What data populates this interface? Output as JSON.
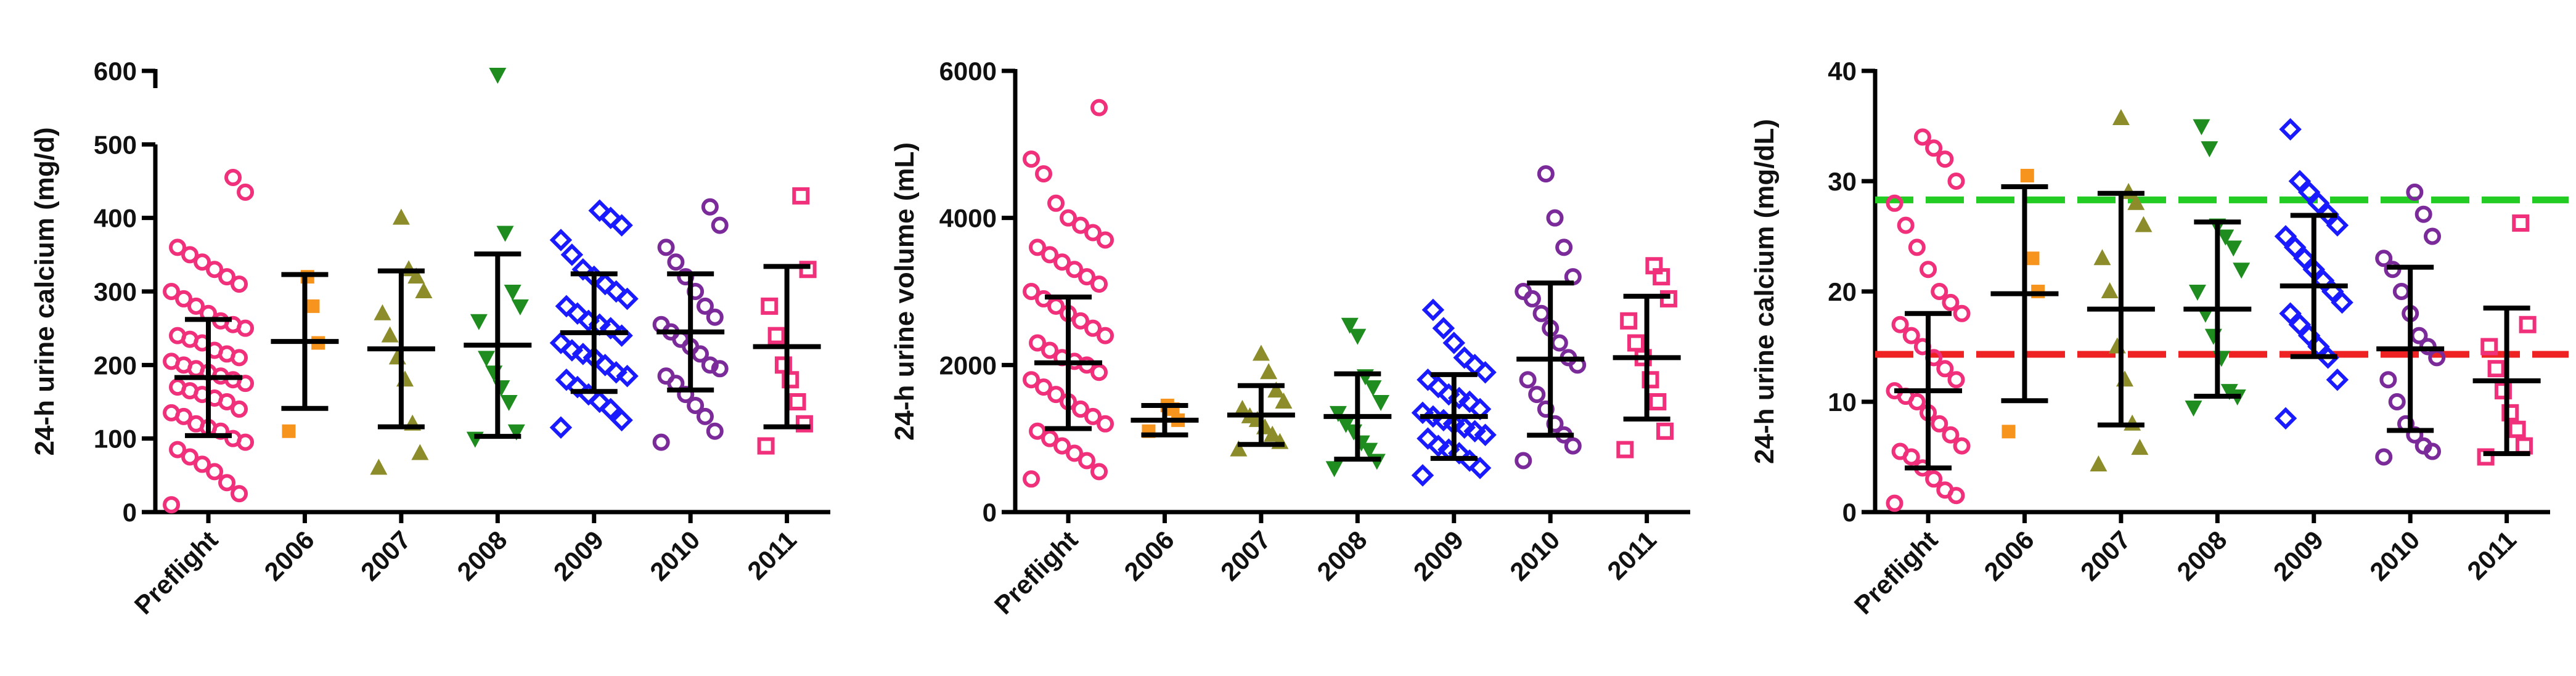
{
  "chart_data": [
    {
      "type": "dot",
      "y_label": "24-h urine calcium (mg/d)",
      "broken_axis": true,
      "categories": [
        "Preflight",
        "2006",
        "2007",
        "2008",
        "2009",
        "2010",
        "2011"
      ],
      "colors": [
        "#f0307a",
        "#f7941d",
        "#8c8c2a",
        "#1e8c1e",
        "#1a1aff",
        "#7b2a9a",
        "#f0307a"
      ],
      "markers": [
        "circle-open",
        "square",
        "triangle",
        "triangle-down",
        "diamond-open",
        "circle-open",
        "square-open"
      ],
      "ylim": [
        0,
        600
      ],
      "yticks": [
        0,
        100,
        200,
        300,
        400,
        500,
        600
      ],
      "means": [
        183,
        232,
        222,
        227,
        244,
        245,
        225
      ],
      "sd": [
        79,
        91,
        106,
        124,
        80,
        79,
        109
      ],
      "points": [
        [
          10,
          25,
          40,
          55,
          65,
          75,
          85,
          95,
          100,
          110,
          115,
          120,
          130,
          135,
          140,
          150,
          155,
          160,
          165,
          170,
          175,
          180,
          185,
          190,
          195,
          200,
          205,
          210,
          215,
          220,
          230,
          235,
          240,
          250,
          255,
          260,
          270,
          280,
          290,
          300,
          310,
          320,
          330,
          340,
          350,
          360,
          435,
          455
        ],
        [
          110,
          230,
          280,
          320
        ],
        [
          60,
          80,
          120,
          180,
          210,
          240,
          270,
          300,
          320,
          330,
          400
        ],
        [
          100,
          110,
          150,
          170,
          190,
          210,
          260,
          280,
          300,
          380,
          595
        ],
        [
          115,
          125,
          140,
          150,
          160,
          170,
          180,
          185,
          190,
          200,
          210,
          215,
          220,
          230,
          240,
          250,
          255,
          260,
          270,
          280,
          290,
          300,
          310,
          320,
          330,
          350,
          370,
          390,
          400,
          410
        ],
        [
          95,
          110,
          130,
          145,
          160,
          175,
          185,
          195,
          200,
          215,
          225,
          235,
          245,
          255,
          265,
          280,
          300,
          320,
          340,
          360,
          390,
          415
        ],
        [
          90,
          120,
          150,
          180,
          200,
          240,
          280,
          330,
          430
        ]
      ]
    },
    {
      "type": "dot",
      "y_label": "24-h urine volume (mL)",
      "categories": [
        "Preflight",
        "2006",
        "2007",
        "2008",
        "2009",
        "2010",
        "2011"
      ],
      "colors": [
        "#f0307a",
        "#f7941d",
        "#8c8c2a",
        "#1e8c1e",
        "#1a1aff",
        "#7b2a9a",
        "#f0307a"
      ],
      "markers": [
        "circle-open",
        "square",
        "triangle",
        "triangle-down",
        "diamond-open",
        "circle-open",
        "square-open"
      ],
      "ylim": [
        0,
        6000
      ],
      "yticks": [
        0,
        2000,
        4000,
        6000
      ],
      "means": [
        2030,
        1250,
        1320,
        1300,
        1300,
        2080,
        2100
      ],
      "sd": [
        895,
        200,
        400,
        580,
        570,
        1035,
        835
      ],
      "points": [
        [
          450,
          550,
          700,
          800,
          900,
          1000,
          1100,
          1200,
          1300,
          1400,
          1500,
          1600,
          1700,
          1800,
          1900,
          2000,
          2050,
          2100,
          2200,
          2300,
          2400,
          2500,
          2600,
          2700,
          2800,
          2900,
          3000,
          3100,
          3200,
          3300,
          3400,
          3500,
          3600,
          3700,
          3800,
          3900,
          4000,
          4200,
          4600,
          4800,
          5500
        ],
        [
          1100,
          1250,
          1400,
          1450
        ],
        [
          850,
          950,
          1050,
          1150,
          1250,
          1300,
          1400,
          1500,
          1650,
          1900,
          2150
        ],
        [
          600,
          700,
          850,
          950,
          1100,
          1200,
          1350,
          1500,
          1700,
          1850,
          2400,
          2550
        ],
        [
          500,
          600,
          700,
          800,
          850,
          900,
          1000,
          1050,
          1100,
          1150,
          1200,
          1250,
          1300,
          1350,
          1400,
          1500,
          1550,
          1600,
          1700,
          1800,
          1900,
          2000,
          2100,
          2300,
          2500,
          2750
        ],
        [
          700,
          900,
          1050,
          1200,
          1400,
          1600,
          1800,
          2000,
          2100,
          2300,
          2500,
          2700,
          2900,
          3000,
          3200,
          3600,
          4000,
          4600
        ],
        [
          850,
          1100,
          1500,
          1800,
          2100,
          2300,
          2600,
          2900,
          3200,
          3350
        ]
      ]
    },
    {
      "type": "dot",
      "y_label": "24-h urine calcium (mg/dL)",
      "categories": [
        "Preflight",
        "2006",
        "2007",
        "2008",
        "2009",
        "2010",
        "2011"
      ],
      "colors": [
        "#f0307a",
        "#f7941d",
        "#8c8c2a",
        "#1e8c1e",
        "#1a1aff",
        "#7b2a9a",
        "#f0307a"
      ],
      "markers": [
        "circle-open",
        "square",
        "triangle",
        "triangle-down",
        "diamond-open",
        "circle-open",
        "square-open"
      ],
      "ylim": [
        0,
        40
      ],
      "yticks": [
        0,
        10,
        20,
        30,
        40
      ],
      "ref_lines": [
        {
          "value": 28.3,
          "color": "#22cc22"
        },
        {
          "value": 14.3,
          "color": "#ee2222"
        }
      ],
      "means": [
        11,
        19.8,
        18.4,
        18.4,
        20.5,
        14.8,
        11.9
      ],
      "sd": [
        7,
        9.7,
        10.5,
        7.9,
        6.4,
        7.4,
        6.6
      ],
      "points": [
        [
          0.8,
          1.5,
          2,
          3,
          4,
          5,
          5.5,
          6,
          7,
          8,
          9,
          10,
          10.5,
          11,
          12,
          13,
          14,
          15,
          16,
          17,
          18,
          19,
          20,
          22,
          24,
          26,
          28,
          30,
          32,
          33,
          34
        ],
        [
          7.3,
          20,
          23,
          30.5
        ],
        [
          4.3,
          5.8,
          8,
          12,
          15,
          20,
          23,
          26,
          28,
          29,
          35.7
        ],
        [
          9.5,
          10.5,
          11,
          14,
          16,
          18,
          20,
          22,
          24,
          25,
          26,
          33,
          35
        ],
        [
          8.5,
          12,
          14,
          15,
          16,
          17,
          18,
          19,
          20,
          21,
          22,
          23,
          24,
          25,
          26,
          27,
          28,
          29,
          30,
          34.7
        ],
        [
          5,
          5.5,
          6,
          7,
          8,
          10,
          12,
          14,
          15,
          16,
          18,
          20,
          22,
          23,
          25,
          27,
          29
        ],
        [
          5,
          6,
          7.5,
          9,
          11,
          13,
          15,
          17,
          26.2
        ]
      ]
    }
  ]
}
